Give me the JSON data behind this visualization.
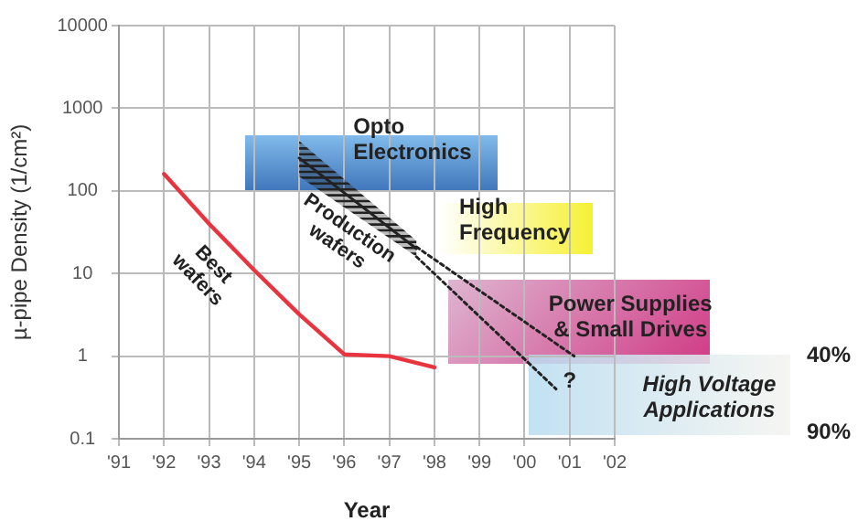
{
  "chart_data": {
    "type": "line",
    "xlabel": "Year",
    "ylabel": "µ-pipe Density (1/cm²)",
    "xlim": [
      1991,
      2002
    ],
    "xticks": [
      {
        "value": 1991,
        "label": "'91"
      },
      {
        "value": 1992,
        "label": "'92"
      },
      {
        "value": 1993,
        "label": "'93"
      },
      {
        "value": 1994,
        "label": "'94"
      },
      {
        "value": 1995,
        "label": "'95"
      },
      {
        "value": 1996,
        "label": "'96"
      },
      {
        "value": 1997,
        "label": "'97"
      },
      {
        "value": 1998,
        "label": "'98"
      },
      {
        "value": 1999,
        "label": "'99"
      },
      {
        "value": 2000,
        "label": "'00"
      },
      {
        "value": 2001,
        "label": "'01"
      },
      {
        "value": 2002,
        "label": "'02"
      }
    ],
    "ylim": [
      0.1,
      10000
    ],
    "yticks": [
      0.1,
      1,
      10,
      100,
      1000,
      10000
    ],
    "log": true,
    "grid": true,
    "legend": false,
    "marker": "none",
    "series": [
      {
        "name": "Best wafers",
        "color": "#e8343f",
        "x": [
          1992,
          1993,
          1994,
          1995,
          1996,
          1997,
          1998
        ],
        "values": [
          160,
          40,
          11,
          3.2,
          1.05,
          1,
          0.73
        ]
      },
      {
        "name": "Production wafers",
        "color": "#222222",
        "x": [
          1995,
          1997.6
        ],
        "values": [
          250,
          20
        ],
        "lower": [
          150,
          16
        ],
        "upper": [
          400,
          25
        ]
      },
      {
        "color": "#222222",
        "line_style": "dotted",
        "x": [
          1997.6,
          2001.1
        ],
        "values": [
          21,
          1
        ]
      },
      {
        "color": "#222222",
        "line_style": "dotted",
        "x": [
          1997.6,
          2000.7
        ],
        "values": [
          16,
          0.4
        ]
      }
    ],
    "annotations": [
      "Opto\nElectronics",
      "High\nFrequency",
      "Power Supplies\n& Small Drives",
      "High Voltage\nApplications",
      "?",
      "40%",
      "90%"
    ]
  }
}
